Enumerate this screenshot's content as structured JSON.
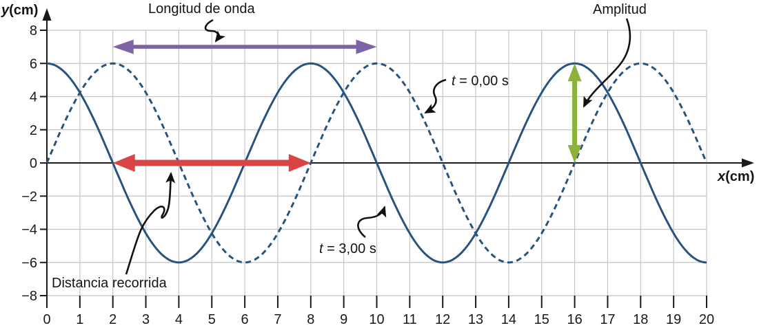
{
  "axes": {
    "y": {
      "var": "y",
      "unit": "(cm)",
      "ticks": [
        "8",
        "6",
        "4",
        "2",
        "0",
        "−2",
        "−4",
        "−6",
        "−8"
      ],
      "tick_values": [
        8,
        6,
        4,
        2,
        0,
        -2,
        -4,
        -6,
        -8
      ]
    },
    "x": {
      "var": "x",
      "unit": "(cm)",
      "ticks": [
        "0",
        "1",
        "2",
        "3",
        "4",
        "5",
        "6",
        "7",
        "8",
        "9",
        "10",
        "11",
        "12",
        "13",
        "14",
        "15",
        "16",
        "17",
        "18",
        "19",
        "20"
      ]
    }
  },
  "annotations": {
    "wavelength_label": "Longitud de onda",
    "amplitude_label": "Amplitud",
    "distance_label": "Distancia recorrida",
    "t0": {
      "var": "t",
      "rest": " = 0,00 s"
    },
    "t3": {
      "var": "t",
      "rest": " = 3,00 s"
    }
  },
  "colors": {
    "curve": "#27537F",
    "wavelength_arrow": "#7E63A6",
    "distance_arrow": "#D94444",
    "amplitude_arrow": "#8CB23C",
    "grid": "#C4C4C4",
    "axis": "#1A1A1A",
    "leader": "#111111"
  },
  "chart_data": {
    "type": "line",
    "title": "",
    "xlabel": "x (cm)",
    "ylabel": "y (cm)",
    "xlim": [
      0,
      20
    ],
    "ylim": [
      -8,
      8
    ],
    "x_tick_step": 1,
    "y_tick_step": 2,
    "grid": true,
    "legend_position": "none",
    "series": [
      {
        "name": "t = 0,00 s",
        "style": "dashed",
        "shape": "sine",
        "amplitude_cm": 6,
        "wavelength_cm": 8,
        "first_peak_x": 2,
        "x_range": [
          0,
          20
        ]
      },
      {
        "name": "t = 3,00 s",
        "style": "solid",
        "shape": "sine",
        "amplitude_cm": 6,
        "wavelength_cm": 8,
        "first_peak_x": 0,
        "x_range": [
          0,
          20
        ]
      }
    ],
    "measure_arrows": [
      {
        "name": "wavelength",
        "label": "Longitud de onda",
        "orientation": "horizontal",
        "x_from": 2,
        "x_to": 10,
        "y_at": 7
      },
      {
        "name": "distance",
        "label": "Distancia recorrida",
        "orientation": "horizontal",
        "x_from": 2,
        "x_to": 8,
        "y_at": 0
      },
      {
        "name": "amplitude",
        "label": "Amplitud",
        "orientation": "vertical",
        "x_at": 16,
        "y_from": 0,
        "y_to": 6
      }
    ]
  }
}
